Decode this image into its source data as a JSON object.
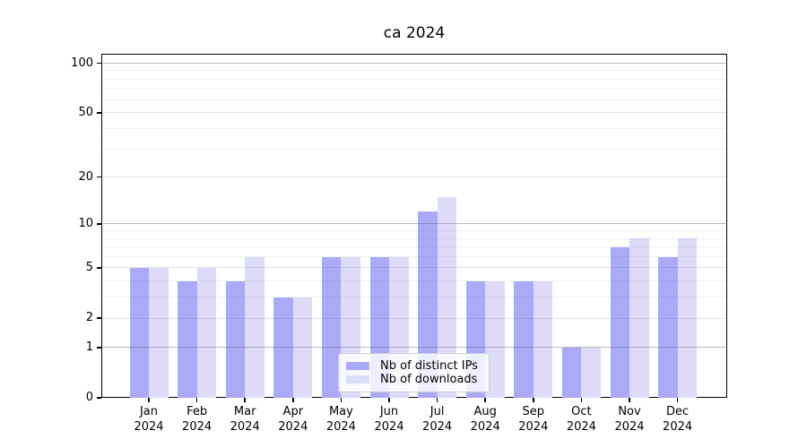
{
  "title": "ca 2024",
  "chart_data": {
    "type": "bar",
    "title": "ca 2024",
    "categories": [
      "Jan",
      "Feb",
      "Mar",
      "Apr",
      "May",
      "Jun",
      "Jul",
      "Aug",
      "Sep",
      "Oct",
      "Nov",
      "Dec"
    ],
    "year_label": "2024",
    "series": [
      {
        "name": "Nb of distinct IPs",
        "color": "#aaaaf8",
        "values": [
          5,
          4,
          4,
          3,
          6,
          6,
          12,
          4,
          4,
          1,
          7,
          6
        ]
      },
      {
        "name": "Nb of downloads",
        "color": "#dcdcf8",
        "values": [
          5,
          5,
          6,
          3,
          6,
          6,
          15,
          4,
          4,
          1,
          8,
          8
        ]
      }
    ],
    "yscale": "log1p",
    "yticks": [
      0,
      1,
      2,
      5,
      10,
      20,
      50,
      100
    ],
    "major_gridlines": [
      1,
      10,
      100
    ],
    "ylim": [
      0,
      114
    ],
    "xlabel": "",
    "ylabel": "",
    "grid": true,
    "legend_position": "bottom-center"
  },
  "colors": {
    "bar_distinct_ips": "#aaaaf8",
    "bar_downloads": "#dcdcf8",
    "grid_major": "#bdbdbd",
    "grid_minor": "#efefef",
    "spine": "#000000",
    "legend_border": "#cccccc",
    "text": "#000000"
  }
}
